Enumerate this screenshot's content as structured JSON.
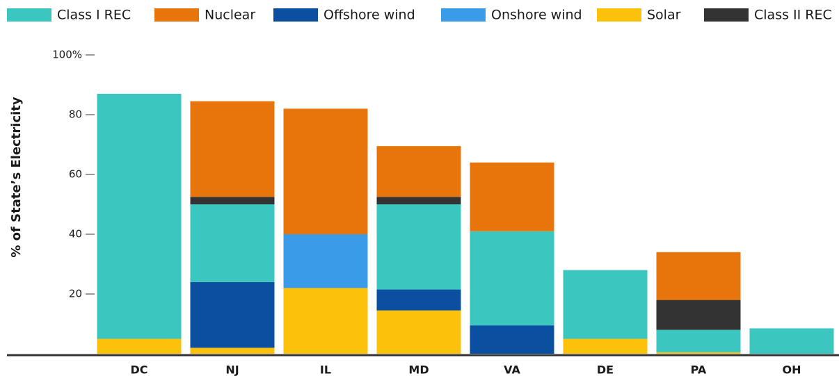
{
  "chart_data": {
    "type": "stacked_bar",
    "ylabel": "% of State’s Electricity",
    "categories": [
      "DC",
      "NJ",
      "IL",
      "MD",
      "VA",
      "DE",
      "PA",
      "OH"
    ],
    "series": [
      {
        "name": "Class I REC",
        "color": "#3cc6c0",
        "values": [
          82,
          26,
          0,
          28.5,
          31.5,
          23,
          7.5,
          8.5
        ]
      },
      {
        "name": "Nuclear",
        "color": "#e8750c",
        "values": [
          0,
          32,
          42,
          17,
          23,
          0,
          16,
          0
        ]
      },
      {
        "name": "Offshore wind",
        "color": "#0a4fa0",
        "values": [
          0,
          22,
          0,
          7,
          9.5,
          0,
          0,
          0
        ]
      },
      {
        "name": "Onshore wind",
        "color": "#3a9be8",
        "values": [
          0,
          0,
          18,
          0,
          0,
          0,
          0,
          0
        ]
      },
      {
        "name": "Solar",
        "color": "#fcc10a",
        "values": [
          5,
          2,
          22,
          14.5,
          0,
          5,
          0.5,
          0
        ]
      },
      {
        "name": "Class II REC",
        "color": "#333333",
        "values": [
          0,
          2.5,
          0,
          2.5,
          0,
          0,
          10,
          0
        ]
      }
    ],
    "ylim": [
      0,
      100
    ],
    "yticks": [
      20,
      40,
      60,
      80,
      {
        "value": 100,
        "label": "100%"
      }
    ]
  }
}
